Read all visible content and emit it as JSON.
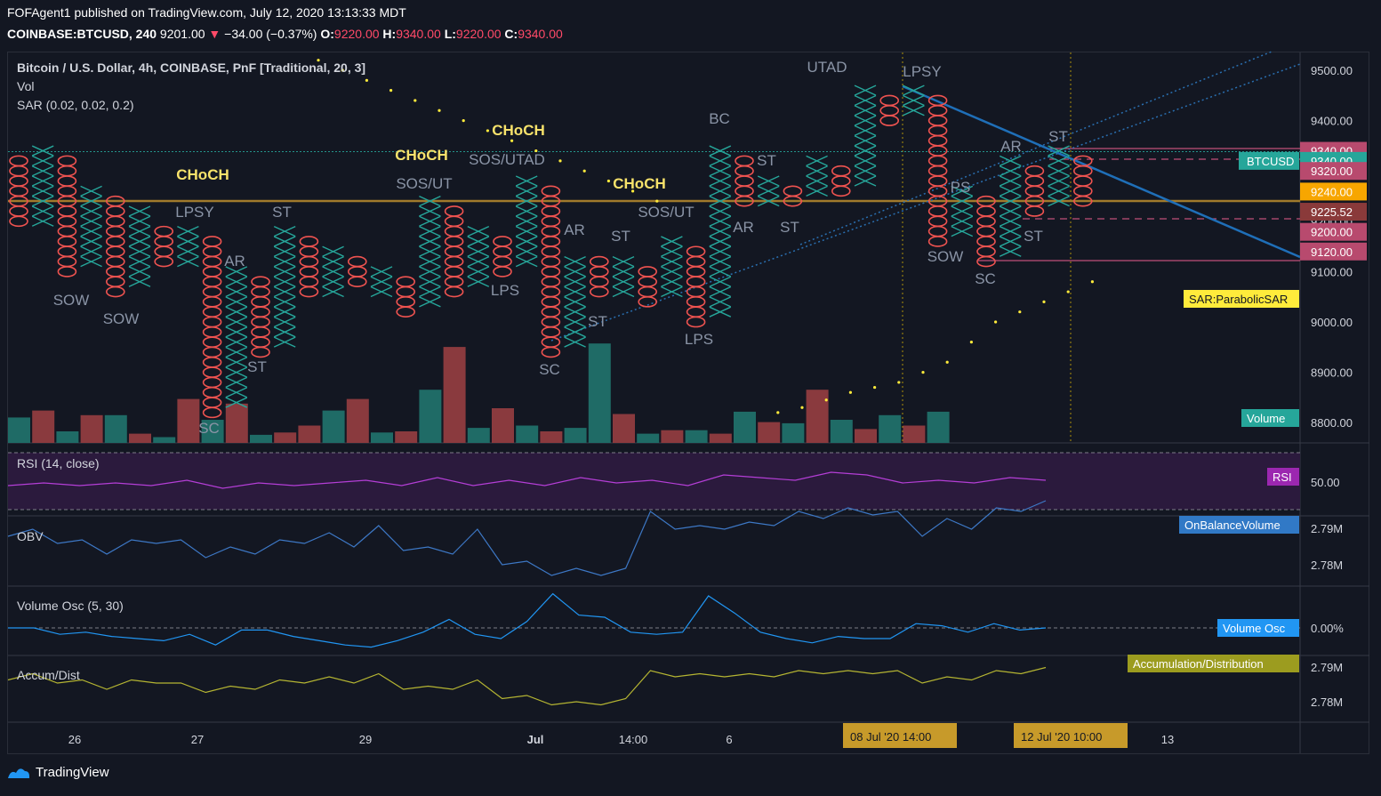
{
  "header": {
    "publisher_line": "FOFAgent1 published on TradingView.com, July 12, 2020 13:13:33 MDT",
    "symbol": "COINBASE:BTCUSD, 240",
    "last": "9201.00",
    "change": "−34.00 (−0.37%)",
    "o_label": "O:",
    "o_value": "9220.00",
    "h_label": "H:",
    "h_value": "9340.00",
    "l_label": "L:",
    "l_value": "9220.00",
    "c_label": "C:",
    "c_value": "9340.00"
  },
  "legend": {
    "title": "Bitcoin / U.S. Dollar, 4h, COINBASE, PnF [Traditional, 20, 3]",
    "vol": "Vol",
    "sar": "SAR (0.02, 0.02, 0.2)"
  },
  "panes": {
    "rsi": "RSI (14, close)",
    "obv": "OBV",
    "volosc": "Volume Osc (5, 30)",
    "accum": "Accum/Dist"
  },
  "price_axis": [
    "9500.00",
    "9400.00",
    "9300.00",
    "9200.00",
    "9100.00",
    "9000.00",
    "8900.00",
    "8800.00"
  ],
  "price_tags": [
    {
      "text": "9340.00",
      "price": 9340,
      "color": "#b84a6e"
    },
    {
      "text": "9340.00",
      "price": 9320,
      "color": "#26a69a",
      "label": "BTCUSD"
    },
    {
      "text": "9320.00",
      "price": 9300,
      "color": "#b84a6e"
    },
    {
      "text": "9240.00",
      "price": 9259,
      "color": "#f7a600"
    },
    {
      "text": "9225.52",
      "price": 9219,
      "color": "#8a3a3a"
    },
    {
      "text": "9200.00",
      "price": 9179,
      "color": "#b84a6e"
    },
    {
      "text": "9120.00",
      "price": 9140,
      "color": "#b84a6e"
    }
  ],
  "side_labels": {
    "sar": "SAR:ParabolicSAR",
    "volume": "Volume",
    "rsi": "RSI",
    "obv": "OnBalanceVolume",
    "volosc": "Volume Osc",
    "accum": "Accumulation/Distribution"
  },
  "pane_axis": {
    "rsi": [
      "50.00"
    ],
    "obv": [
      "2.79M",
      "2.78M"
    ],
    "volosc": [
      "0.00%"
    ],
    "accum": [
      "2.79M",
      "2.78M"
    ]
  },
  "time_axis": [
    "26",
    "27",
    "29",
    "Jul",
    "14:00",
    "6",
    "13"
  ],
  "time_highlights": [
    "08 Jul '20   14:00",
    "12 Jul '20   10:00"
  ],
  "annotations": {
    "choch": [
      "CHoCH",
      "CHoCH",
      "CHoCH",
      "CHoCH"
    ],
    "wyckoff": [
      "LPSY",
      "ST",
      "AR",
      "ST",
      "SOW",
      "SOW",
      "SC",
      "SOS/UT",
      "SOS/UTAD",
      "LPS",
      "AR",
      "ST",
      "SC",
      "ST",
      "SOS/UT",
      "BC",
      "ST",
      "AR",
      "ST",
      "LPS",
      "UTAD",
      "LPSY",
      "PS",
      "SOW",
      "SC",
      "AR",
      "ST",
      "ST"
    ]
  },
  "chart_data": {
    "type": "pnf",
    "title": "Bitcoin / U.S. Dollar, 4h, COINBASE, PnF [Traditional, 20, 3]",
    "box_size": 20,
    "reversal": 3,
    "ylim": [
      8760,
      9540
    ],
    "columns": [
      {
        "kind": "O",
        "high": 9320,
        "low": 9200
      },
      {
        "kind": "X",
        "high": 9340,
        "low": 9200
      },
      {
        "kind": "O",
        "high": 9320,
        "low": 9100
      },
      {
        "kind": "X",
        "high": 9260,
        "low": 9120
      },
      {
        "kind": "O",
        "high": 9240,
        "low": 9060
      },
      {
        "kind": "X",
        "high": 9220,
        "low": 9080
      },
      {
        "kind": "O",
        "high": 9180,
        "low": 9120
      },
      {
        "kind": "X",
        "high": 9180,
        "low": 9120
      },
      {
        "kind": "O",
        "high": 9160,
        "low": 8820
      },
      {
        "kind": "X",
        "high": 9100,
        "low": 8840
      },
      {
        "kind": "O",
        "high": 9080,
        "low": 8940
      },
      {
        "kind": "X",
        "high": 9180,
        "low": 8960
      },
      {
        "kind": "O",
        "high": 9160,
        "low": 9060
      },
      {
        "kind": "X",
        "high": 9140,
        "low": 9060
      },
      {
        "kind": "O",
        "high": 9120,
        "low": 9080
      },
      {
        "kind": "X",
        "high": 9100,
        "low": 9060
      },
      {
        "kind": "O",
        "high": 9080,
        "low": 9020
      },
      {
        "kind": "X",
        "high": 9240,
        "low": 9040
      },
      {
        "kind": "O",
        "high": 9220,
        "low": 9060
      },
      {
        "kind": "X",
        "high": 9180,
        "low": 9080
      },
      {
        "kind": "O",
        "high": 9160,
        "low": 9100
      },
      {
        "kind": "X",
        "high": 9280,
        "low": 9120
      },
      {
        "kind": "O",
        "high": 9260,
        "low": 8940
      },
      {
        "kind": "X",
        "high": 9120,
        "low": 8960
      },
      {
        "kind": "O",
        "high": 9120,
        "low": 9060
      },
      {
        "kind": "X",
        "high": 9120,
        "low": 9060
      },
      {
        "kind": "O",
        "high": 9100,
        "low": 9040
      },
      {
        "kind": "X",
        "high": 9160,
        "low": 9060
      },
      {
        "kind": "O",
        "high": 9140,
        "low": 9000
      },
      {
        "kind": "X",
        "high": 9340,
        "low": 9020
      },
      {
        "kind": "O",
        "high": 9320,
        "low": 9240
      },
      {
        "kind": "X",
        "high": 9280,
        "low": 9240
      },
      {
        "kind": "O",
        "high": 9260,
        "low": 9240
      },
      {
        "kind": "X",
        "high": 9320,
        "low": 9260
      },
      {
        "kind": "O",
        "high": 9300,
        "low": 9260
      },
      {
        "kind": "X",
        "high": 9460,
        "low": 9280
      },
      {
        "kind": "O",
        "high": 9440,
        "low": 9400
      },
      {
        "kind": "X",
        "high": 9460,
        "low": 9420
      },
      {
        "kind": "O",
        "high": 9440,
        "low": 9160
      },
      {
        "kind": "X",
        "high": 9260,
        "low": 9180
      },
      {
        "kind": "O",
        "high": 9240,
        "low": 9120
      },
      {
        "kind": "X",
        "high": 9320,
        "low": 9140
      },
      {
        "kind": "O",
        "high": 9300,
        "low": 9220
      },
      {
        "kind": "X",
        "high": 9340,
        "low": 9240
      },
      {
        "kind": "O",
        "high": 9320,
        "low": 9240
      }
    ],
    "volume": [
      22,
      28,
      10,
      24,
      24,
      8,
      5,
      38,
      20,
      34,
      7,
      9,
      15,
      28,
      38,
      9,
      10,
      46,
      83,
      13,
      30,
      15,
      10,
      13,
      86,
      25,
      8,
      11,
      11,
      8,
      27,
      18,
      17,
      46,
      20,
      12,
      24,
      15,
      27
    ],
    "volume_color": [
      "X",
      "O",
      "X",
      "O",
      "X",
      "O",
      "X",
      "O",
      "X",
      "O",
      "X",
      "O",
      "O",
      "X",
      "O",
      "X",
      "O",
      "X",
      "O",
      "X",
      "O",
      "X",
      "O",
      "X",
      "X",
      "O",
      "X",
      "O",
      "X",
      "O",
      "X",
      "O",
      "X",
      "O",
      "X",
      "O",
      "X",
      "O",
      "X"
    ],
    "sar": [
      9520,
      9500,
      9480,
      9460,
      9440,
      9420,
      9400,
      9380,
      9360,
      9340,
      9320,
      9300,
      9280,
      9260,
      9240,
      8820,
      8830,
      8845,
      8860,
      8870,
      8880,
      8900,
      8920,
      8960,
      9000,
      9020,
      9040,
      9060,
      9080
    ],
    "rsi": [
      49,
      50,
      49,
      50,
      49,
      51,
      48,
      50,
      49,
      50,
      51,
      49,
      52,
      49,
      51,
      49,
      52,
      50,
      51,
      49,
      53,
      52,
      51,
      54,
      53,
      50,
      51,
      50,
      52,
      51
    ],
    "obv": [
      2.788,
      2.79,
      2.786,
      2.787,
      2.783,
      2.787,
      2.786,
      2.787,
      2.782,
      2.785,
      2.783,
      2.787,
      2.786,
      2.789,
      2.785,
      2.791,
      2.784,
      2.785,
      2.783,
      2.79,
      2.78,
      2.781,
      2.777,
      2.779,
      2.777,
      2.779,
      2.795,
      2.79,
      2.791,
      2.79,
      2.792,
      2.791,
      2.795,
      2.793,
      2.796,
      2.794,
      2.795,
      2.788,
      2.793,
      2.79,
      2.796,
      2.795,
      2.798
    ],
    "volosc": [
      0,
      0,
      -0.3,
      -0.2,
      -0.4,
      -0.5,
      -0.6,
      -0.3,
      -0.8,
      -0.1,
      -0.1,
      -0.4,
      -0.6,
      -0.8,
      -0.9,
      -0.6,
      -0.2,
      0.4,
      -0.3,
      -0.5,
      0.3,
      1.6,
      0.6,
      0.5,
      -0.2,
      -0.3,
      -0.2,
      1.5,
      0.7,
      -0.2,
      -0.5,
      -0.7,
      -0.4,
      -0.5,
      -0.5,
      0.2,
      0.1,
      -0.2,
      0.2,
      -0.1,
      0
    ],
    "accum": [
      2.787,
      2.789,
      2.786,
      2.787,
      2.784,
      2.787,
      2.786,
      2.786,
      2.783,
      2.785,
      2.784,
      2.787,
      2.786,
      2.788,
      2.786,
      2.789,
      2.784,
      2.785,
      2.784,
      2.787,
      2.781,
      2.782,
      2.779,
      2.78,
      2.779,
      2.781,
      2.79,
      2.788,
      2.789,
      2.788,
      2.789,
      2.788,
      2.79,
      2.789,
      2.79,
      2.789,
      2.79,
      2.786,
      2.788,
      2.787,
      2.79,
      2.789,
      2.791
    ]
  }
}
